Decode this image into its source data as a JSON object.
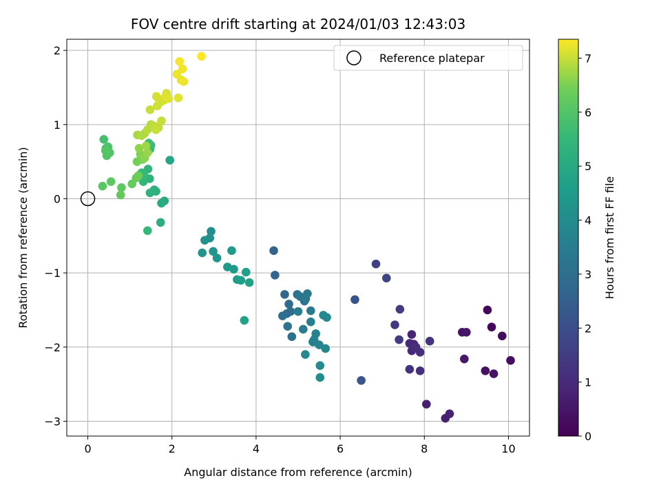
{
  "chart_data": {
    "type": "scatter",
    "title": "FOV centre drift starting at 2024/01/03 12:43:03",
    "xlabel": "Angular distance from reference (arcmin)",
    "ylabel": "Rotation from reference (arcmin)",
    "xlim": [
      -0.5,
      10.5
    ],
    "ylim": [
      -3.2,
      2.15
    ],
    "xticks": [
      0,
      2,
      4,
      6,
      8,
      10
    ],
    "yticks": [
      -3,
      -2,
      -1,
      0,
      1,
      2
    ],
    "xtick_labels": [
      "0",
      "2",
      "4",
      "6",
      "8",
      "10"
    ],
    "ytick_labels": [
      "−3",
      "−2",
      "−1",
      "0",
      "1",
      "2"
    ],
    "grid": true,
    "legend": {
      "position": "upper right",
      "entries": [
        {
          "label": "Reference platepar",
          "marker": "open-circle"
        }
      ]
    },
    "reference_point": {
      "x": 0,
      "y": 0
    },
    "colorbar": {
      "label": "Hours from first FF file",
      "colormap": "viridis",
      "range": [
        0,
        7.35
      ],
      "ticks": [
        0,
        1,
        2,
        3,
        4,
        5,
        6,
        7
      ],
      "tick_labels": [
        "0",
        "1",
        "2",
        "3",
        "4",
        "5",
        "6",
        "7"
      ]
    },
    "series": [
      {
        "x": [
          9.5,
          9.6,
          9.85,
          10.05,
          9.45,
          9.65,
          8.9,
          9.0,
          8.95
        ],
        "y": [
          -1.5,
          -1.73,
          -1.85,
          -2.18,
          -2.32,
          -2.36,
          -1.8,
          -1.8,
          -2.16
        ],
        "hours": [
          0.15,
          0.2,
          0.25,
          0.3,
          0.35,
          0.4,
          0.45,
          0.5,
          0.55
        ]
      },
      {
        "x": [
          8.05,
          8.5,
          8.6,
          7.7,
          7.75,
          7.65,
          7.7,
          7.8,
          7.9,
          7.9,
          7.65,
          8.13,
          7.3,
          7.4,
          7.42,
          6.85,
          7.1
        ],
        "y": [
          -2.77,
          -2.96,
          -2.9,
          -1.83,
          -1.96,
          -1.95,
          -2.05,
          -2.0,
          -2.07,
          -2.32,
          -2.3,
          -1.92,
          -1.7,
          -1.9,
          -1.49,
          -0.88,
          -1.07
        ],
        "hours": [
          0.7,
          0.75,
          0.8,
          0.85,
          0.9,
          0.95,
          1.0,
          1.05,
          1.1,
          1.15,
          1.2,
          1.25,
          1.35,
          1.4,
          1.5,
          1.6,
          1.7
        ]
      },
      {
        "x": [
          6.35,
          6.5,
          4.42,
          4.45
        ],
        "y": [
          -1.36,
          -2.45,
          -0.7,
          -1.03
        ],
        "hours": [
          2.1,
          2.2,
          2.6,
          2.65
        ]
      },
      {
        "x": [
          4.68,
          4.73,
          4.78,
          4.82,
          4.63,
          4.85,
          4.75,
          4.98,
          5.05,
          5.15,
          5.22,
          5.18,
          5.3,
          5.0,
          5.12,
          5.3,
          5.38,
          5.35,
          5.42,
          5.5,
          5.6,
          5.65,
          5.68,
          5.17,
          5.52,
          5.52
        ],
        "y": [
          -1.29,
          -1.55,
          -1.42,
          -1.52,
          -1.58,
          -1.86,
          -1.72,
          -1.29,
          -1.32,
          -1.38,
          -1.28,
          -1.35,
          -1.51,
          -1.52,
          -1.76,
          -1.66,
          -1.9,
          -1.93,
          -1.82,
          -1.97,
          -1.57,
          -2.02,
          -1.6,
          -2.1,
          -2.25,
          -2.41
        ],
        "hours": [
          2.8,
          2.85,
          2.9,
          2.95,
          3.0,
          3.05,
          3.1,
          3.15,
          3.2,
          3.25,
          3.3,
          3.35,
          3.4,
          3.45,
          3.5,
          3.55,
          3.6,
          3.65,
          3.7,
          3.75,
          3.8,
          3.85,
          3.9,
          3.95,
          4.0,
          4.05
        ]
      },
      {
        "x": [
          2.93,
          2.9,
          2.78,
          2.72,
          2.98,
          3.07,
          3.32,
          3.42,
          3.47,
          3.55,
          3.64,
          3.76,
          3.84,
          3.72
        ],
        "y": [
          -0.44,
          -0.53,
          -0.56,
          -0.73,
          -0.71,
          -0.8,
          -0.92,
          -0.7,
          -0.95,
          -1.09,
          -1.1,
          -0.99,
          -1.13,
          -1.64
        ],
        "hours": [
          4.1,
          4.15,
          4.2,
          4.25,
          4.3,
          4.35,
          4.4,
          4.45,
          4.5,
          4.55,
          4.6,
          4.65,
          4.7,
          4.75
        ]
      },
      {
        "x": [
          1.95,
          1.82,
          1.75,
          1.73,
          1.58,
          1.62,
          1.48,
          1.47,
          1.43,
          1.32,
          1.28,
          1.33,
          1.48,
          1.5,
          1.45,
          1.42
        ],
        "y": [
          0.52,
          -0.03,
          -0.06,
          -0.32,
          0.12,
          0.1,
          0.08,
          0.27,
          0.4,
          0.23,
          0.35,
          0.32,
          0.67,
          0.72,
          0.75,
          -0.43
        ],
        "hours": [
          4.9,
          5.0,
          5.1,
          5.15,
          5.2,
          5.25,
          5.3,
          5.35,
          5.4,
          5.45,
          5.5,
          5.55,
          5.6,
          5.65,
          5.7,
          5.5
        ]
      },
      {
        "x": [
          0.38,
          0.43,
          0.48,
          0.52,
          0.45,
          0.42,
          0.35,
          0.55,
          0.8,
          0.78,
          1.05,
          1.15,
          1.2,
          1.17,
          1.3,
          1.25,
          1.35,
          1.22,
          1.42,
          1.38,
          1.18
        ],
        "y": [
          0.8,
          0.68,
          0.7,
          0.62,
          0.58,
          0.65,
          0.17,
          0.23,
          0.15,
          0.05,
          0.2,
          0.28,
          0.31,
          0.5,
          0.53,
          0.6,
          0.55,
          0.68,
          0.62,
          0.71,
          0.86
        ],
        "hours": [
          5.8,
          5.85,
          5.9,
          5.95,
          6.0,
          6.05,
          6.1,
          6.15,
          6.2,
          6.25,
          6.3,
          6.35,
          6.4,
          6.45,
          6.5,
          6.55,
          6.6,
          6.65,
          6.7,
          6.75,
          6.8
        ]
      },
      {
        "x": [
          1.28,
          1.35,
          1.42,
          1.5,
          1.58,
          1.68,
          1.75,
          1.62,
          1.48,
          1.65,
          1.72,
          1.82,
          1.68,
          1.87,
          1.92,
          2.15,
          2.22,
          1.63,
          1.85,
          2.25,
          2.12,
          2.28,
          2.18,
          2.7
        ],
        "y": [
          0.85,
          0.88,
          0.93,
          1.0,
          0.98,
          0.96,
          1.05,
          0.93,
          1.2,
          1.25,
          1.3,
          1.33,
          1.35,
          1.42,
          1.35,
          1.36,
          1.6,
          1.38,
          1.38,
          1.75,
          1.68,
          1.58,
          1.85,
          1.92
        ],
        "hours": [
          6.85,
          6.85,
          6.9,
          6.9,
          6.95,
          6.95,
          7.0,
          7.0,
          7.0,
          7.05,
          7.05,
          7.1,
          7.1,
          7.1,
          7.15,
          7.15,
          7.2,
          7.1,
          7.15,
          7.25,
          7.25,
          7.25,
          7.3,
          7.35
        ]
      }
    ]
  }
}
